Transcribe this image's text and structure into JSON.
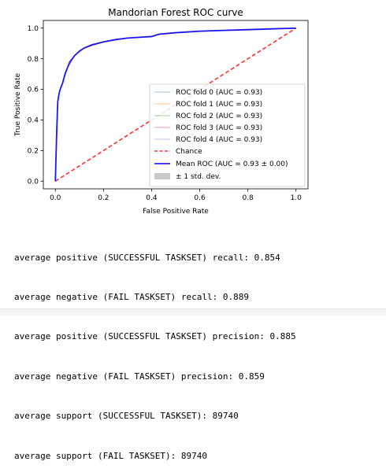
{
  "chart_data": {
    "type": "line",
    "title": "Mandorian Forest ROC curve",
    "xlabel": "False Positive Rate",
    "ylabel": "True Positive Rate",
    "xlim": [
      -0.05,
      1.05
    ],
    "ylim": [
      -0.05,
      1.05
    ],
    "xticks": [
      "0.0",
      "0.2",
      "0.4",
      "0.6",
      "0.8",
      "1.0"
    ],
    "yticks": [
      "0.0",
      "0.2",
      "0.4",
      "0.6",
      "0.8",
      "1.0"
    ],
    "grid": false,
    "legend_position": "lower right",
    "series": [
      {
        "name": "ROC fold 0 (AUC = 0.93)",
        "color": "#1f77b4",
        "style": "thin",
        "x": [
          0,
          0.01,
          0.02,
          0.03,
          0.05,
          0.08,
          0.12,
          0.2,
          0.3,
          0.4,
          0.43,
          0.5,
          0.6,
          0.8,
          1.0
        ],
        "y": [
          0,
          0.52,
          0.6,
          0.64,
          0.74,
          0.82,
          0.87,
          0.91,
          0.935,
          0.945,
          0.96,
          0.97,
          0.98,
          0.99,
          1.0
        ]
      },
      {
        "name": "ROC fold 1 (AUC = 0.93)",
        "color": "#ff7f0e",
        "style": "thin",
        "x": [
          0,
          0.01,
          0.02,
          0.03,
          0.05,
          0.08,
          0.12,
          0.2,
          0.3,
          0.4,
          0.43,
          0.5,
          0.6,
          0.8,
          1.0
        ],
        "y": [
          0,
          0.52,
          0.6,
          0.64,
          0.74,
          0.82,
          0.87,
          0.91,
          0.935,
          0.945,
          0.96,
          0.97,
          0.98,
          0.99,
          1.0
        ]
      },
      {
        "name": "ROC fold 2 (AUC = 0.93)",
        "color": "#2ca02c",
        "style": "thin",
        "x": [
          0,
          0.01,
          0.02,
          0.03,
          0.05,
          0.08,
          0.12,
          0.2,
          0.3,
          0.4,
          0.43,
          0.5,
          0.6,
          0.8,
          1.0
        ],
        "y": [
          0,
          0.52,
          0.6,
          0.64,
          0.74,
          0.82,
          0.87,
          0.91,
          0.935,
          0.945,
          0.96,
          0.97,
          0.98,
          0.99,
          1.0
        ]
      },
      {
        "name": "ROC fold 3 (AUC = 0.93)",
        "color": "#d62728",
        "style": "thin",
        "x": [
          0,
          0.01,
          0.02,
          0.03,
          0.05,
          0.08,
          0.12,
          0.2,
          0.3,
          0.4,
          0.43,
          0.5,
          0.6,
          0.8,
          1.0
        ],
        "y": [
          0,
          0.52,
          0.6,
          0.64,
          0.74,
          0.82,
          0.87,
          0.91,
          0.935,
          0.945,
          0.96,
          0.97,
          0.98,
          0.99,
          1.0
        ]
      },
      {
        "name": "ROC fold 4 (AUC = 0.93)",
        "color": "#9467bd",
        "style": "thin",
        "x": [
          0,
          0.01,
          0.02,
          0.03,
          0.05,
          0.08,
          0.12,
          0.2,
          0.3,
          0.4,
          0.43,
          0.5,
          0.6,
          0.8,
          1.0
        ],
        "y": [
          0,
          0.52,
          0.6,
          0.64,
          0.74,
          0.82,
          0.87,
          0.91,
          0.935,
          0.945,
          0.96,
          0.97,
          0.98,
          0.99,
          1.0
        ]
      },
      {
        "name": "Chance",
        "color": "#ff0000",
        "style": "dashed",
        "x": [
          0,
          1
        ],
        "y": [
          0,
          1
        ]
      },
      {
        "name": "Mean ROC (AUC = 0.93 ± 0.00)",
        "color": "#0000ff",
        "style": "thick",
        "x": [
          0,
          0.005,
          0.01,
          0.015,
          0.02,
          0.03,
          0.04,
          0.05,
          0.06,
          0.08,
          0.1,
          0.12,
          0.15,
          0.2,
          0.25,
          0.3,
          0.35,
          0.4,
          0.43,
          0.5,
          0.6,
          0.7,
          0.8,
          0.9,
          1.0
        ],
        "y": [
          0,
          0.3,
          0.52,
          0.57,
          0.6,
          0.64,
          0.7,
          0.74,
          0.78,
          0.82,
          0.85,
          0.87,
          0.89,
          0.91,
          0.925,
          0.935,
          0.94,
          0.945,
          0.96,
          0.97,
          0.98,
          0.985,
          0.99,
          0.995,
          1.0
        ]
      }
    ],
    "std_band": {
      "name": "± 1 std. dev.",
      "color": "#c8c8c8"
    }
  },
  "output_lines": [
    "average positive (SUCCESSFUL TASKSET) recall: 0.854",
    "average negative (FAIL TASKSET) recall: 0.889",
    "average positive (SUCCESSFUL TASKSET) precision: 0.885",
    "average negative (FAIL TASKSET) precision: 0.859",
    "average support (SUCCESSFUL TASKSET): 89740",
    "average support (FAIL TASKSET): 89740"
  ]
}
